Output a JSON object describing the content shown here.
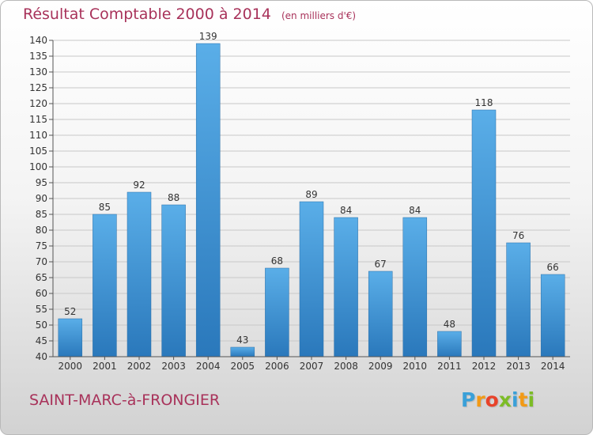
{
  "header": {
    "title": "Résultat Comptable 2000 à 2014",
    "unit": "(en milliers d'€)"
  },
  "footer": {
    "commune": "SAINT-MARC-à-FRONGIER",
    "logo_text": "Proxiti",
    "logo_letters": [
      {
        "ch": "P",
        "color": "#3aa0d8"
      },
      {
        "ch": "r",
        "color": "#f29a16"
      },
      {
        "ch": "o",
        "color": "#e8432a"
      },
      {
        "ch": "x",
        "color": "#7cbc26"
      },
      {
        "ch": "i",
        "color": "#3aa0d8"
      },
      {
        "ch": "t",
        "color": "#f29a16"
      },
      {
        "ch": "i",
        "color": "#7cbc26"
      }
    ]
  },
  "colors": {
    "title": "#a8325a",
    "bar_light": "#5aaee8",
    "bar_dark": "#2a78bb",
    "grid": "#c8c8c8",
    "axis": "#555555"
  },
  "chart_data": {
    "type": "bar",
    "categories": [
      "2000",
      "2001",
      "2002",
      "2003",
      "2004",
      "2005",
      "2006",
      "2007",
      "2008",
      "2009",
      "2010",
      "2011",
      "2012",
      "2013",
      "2014"
    ],
    "values": [
      52,
      85,
      92,
      88,
      139,
      43,
      68,
      89,
      84,
      67,
      84,
      48,
      118,
      76,
      66
    ],
    "ylim": [
      40,
      140
    ],
    "ytick_step": 5,
    "yticks": [
      40,
      45,
      50,
      55,
      60,
      65,
      70,
      75,
      80,
      85,
      90,
      95,
      100,
      105,
      110,
      115,
      120,
      125,
      130,
      135,
      140
    ],
    "grid": true,
    "data_labels": true
  }
}
